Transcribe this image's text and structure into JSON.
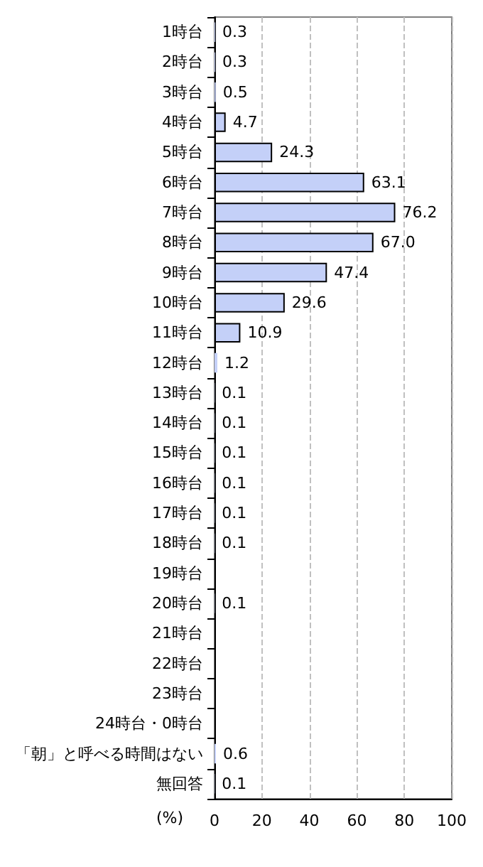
{
  "chart_data": {
    "type": "bar",
    "orientation": "horizontal",
    "xlabel": "(%)",
    "categories": [
      "1時台",
      "2時台",
      "3時台",
      "4時台",
      "5時台",
      "6時台",
      "7時台",
      "8時台",
      "9時台",
      "10時台",
      "11時台",
      "12時台",
      "13時台",
      "14時台",
      "15時台",
      "16時台",
      "17時台",
      "18時台",
      "19時台",
      "20時台",
      "21時台",
      "22時台",
      "23時台",
      "24時台・0時台",
      "「朝」と呼べる時間はない",
      "無回答"
    ],
    "values": [
      0.3,
      0.3,
      0.5,
      4.7,
      24.3,
      63.1,
      76.2,
      67.0,
      47.4,
      29.6,
      10.9,
      1.2,
      0.1,
      0.1,
      0.1,
      0.1,
      0.1,
      0.1,
      null,
      0.1,
      null,
      null,
      null,
      null,
      0.6,
      0.1
    ],
    "value_labels": [
      "0.3",
      "0.3",
      "0.5",
      "4.7",
      "24.3",
      "63.1",
      "76.2",
      "67.0",
      "47.4",
      "29.6",
      "10.9",
      "1.2",
      "0.1",
      "0.1",
      "0.1",
      "0.1",
      "0.1",
      "0.1",
      null,
      "0.1",
      null,
      null,
      null,
      null,
      "0.6",
      "0.1"
    ],
    "color": "#c4d0f8",
    "xlim": [
      0,
      100
    ],
    "xticks": [
      0,
      20,
      40,
      60,
      80,
      100
    ],
    "grid": "x"
  }
}
